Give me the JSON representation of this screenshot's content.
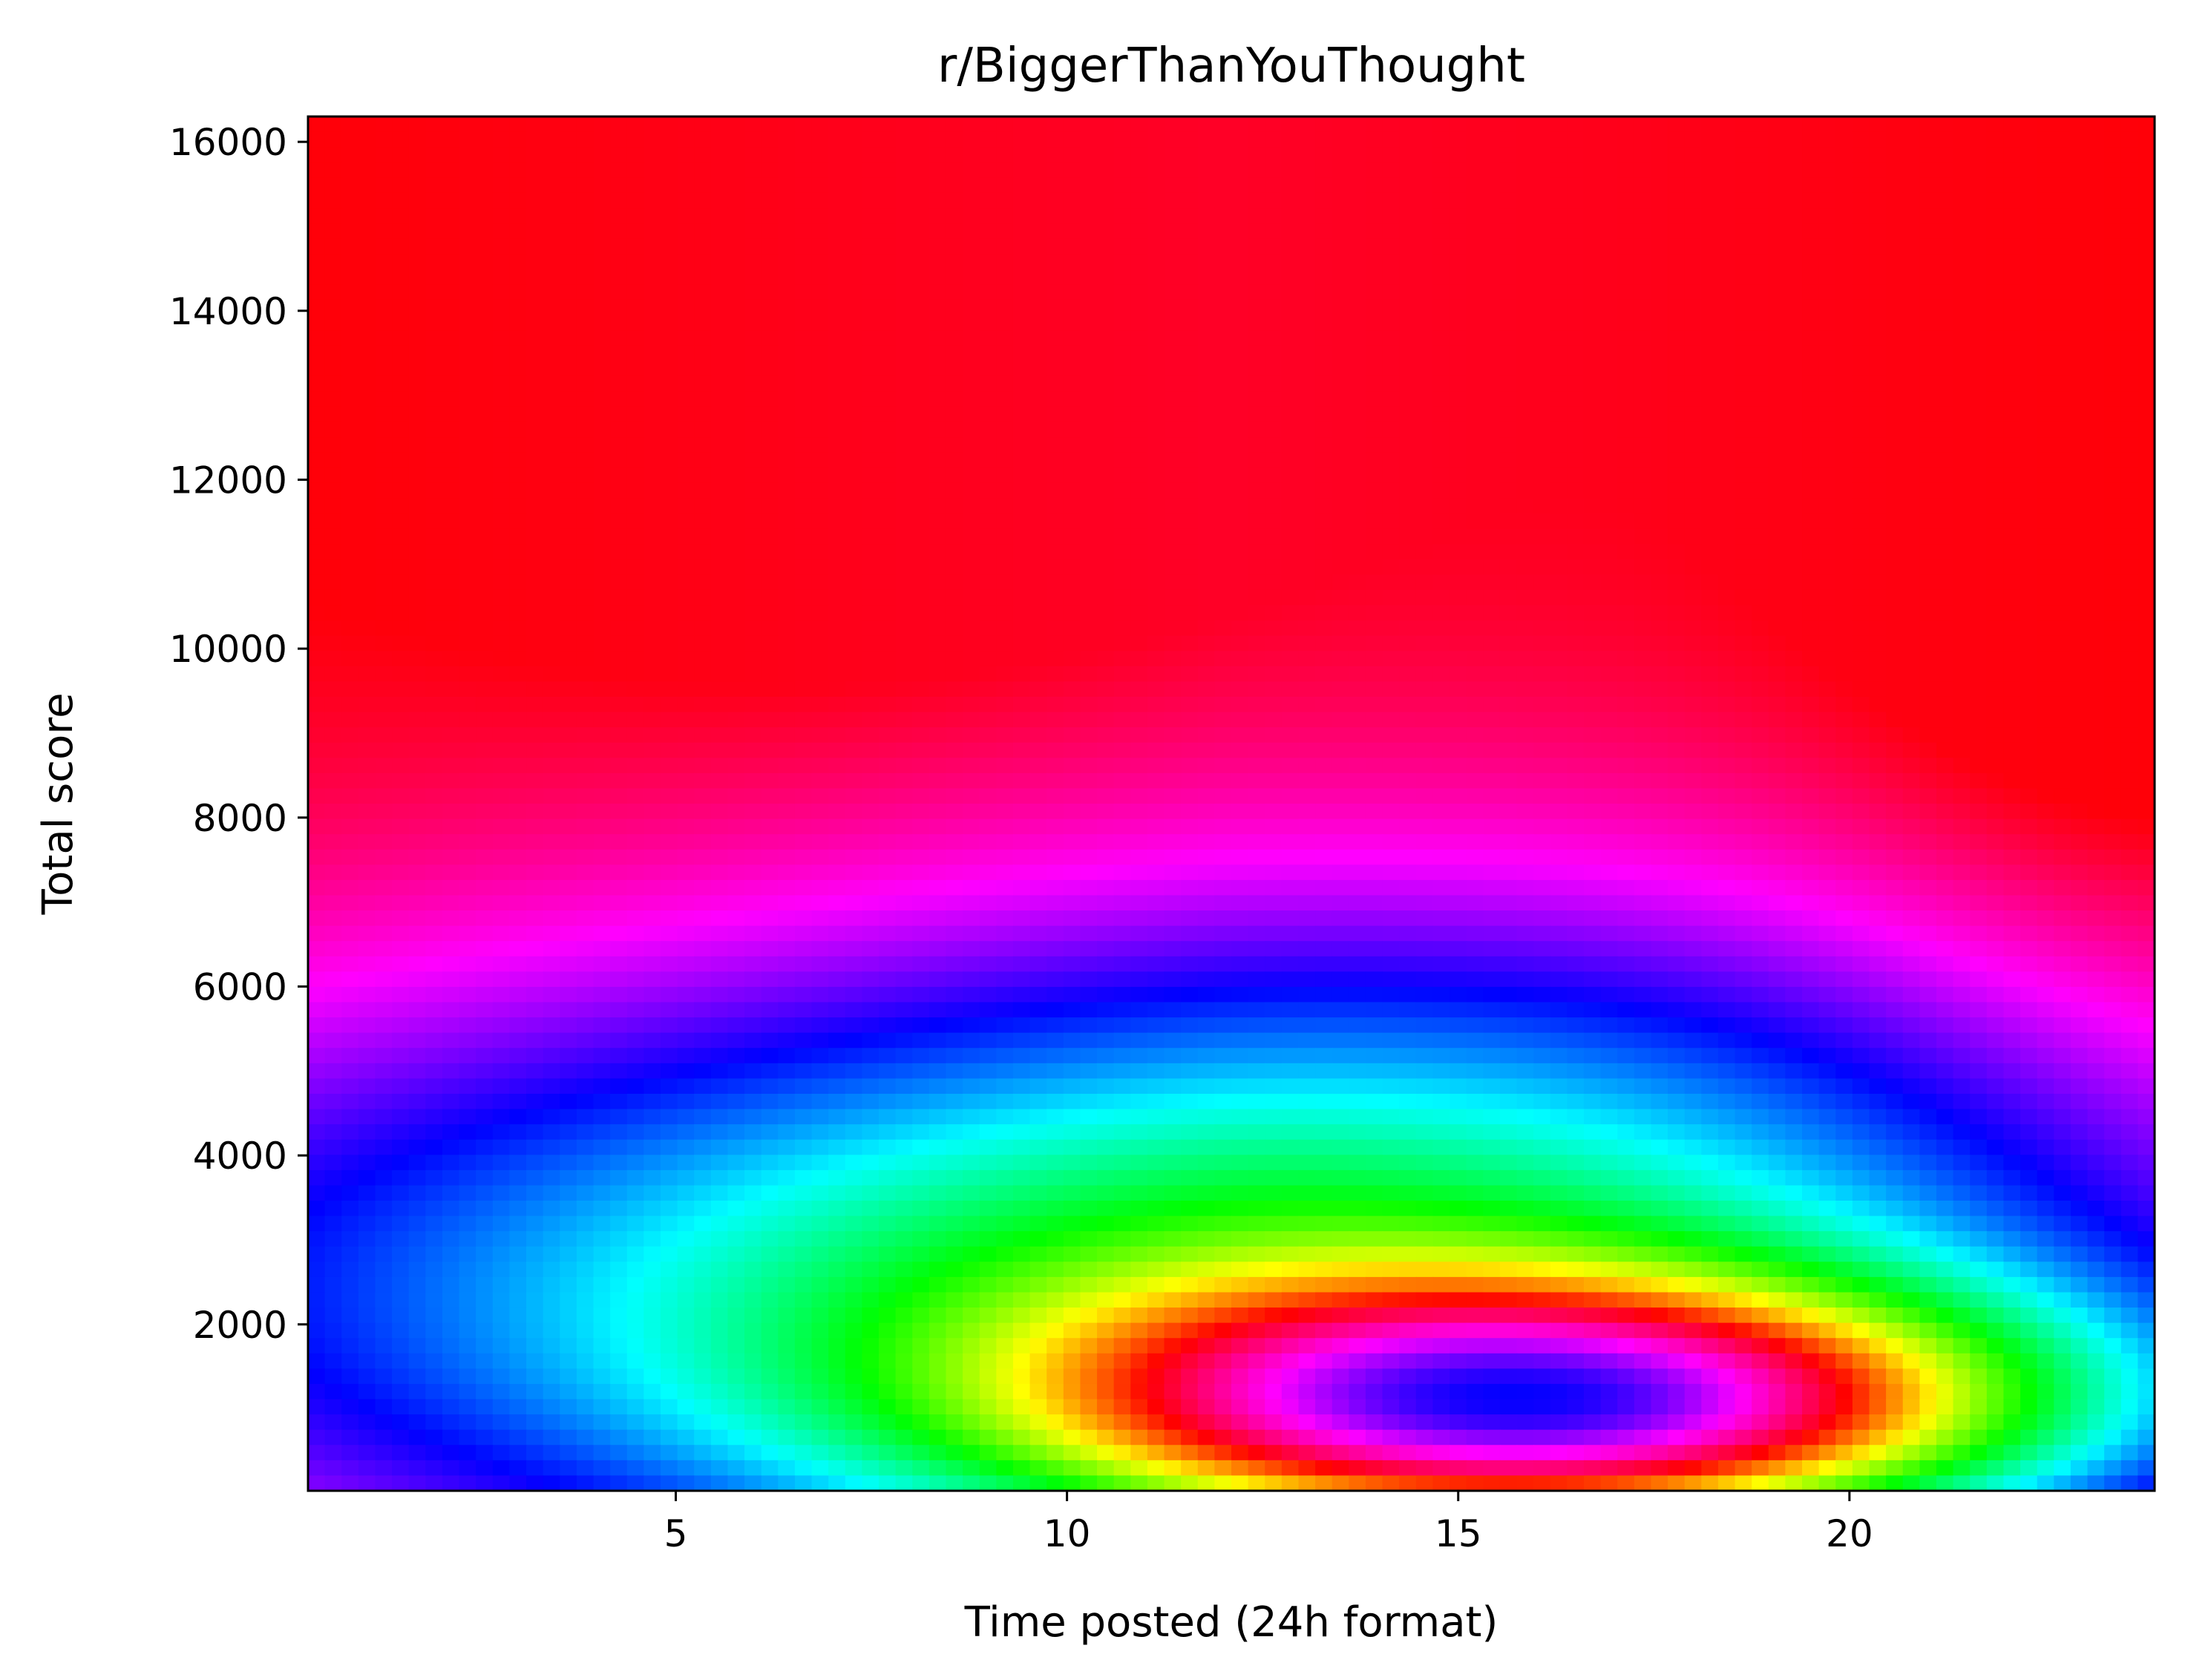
{
  "chart_data": {
    "type": "heatmap",
    "title": "r/BiggerThanYouThought",
    "xlabel": "Time posted (24h format)",
    "ylabel": "Total score",
    "xlim": [
      0.3,
      23.9
    ],
    "ylim": [
      30,
      16300
    ],
    "x_ticks": [
      5,
      10,
      15,
      20
    ],
    "y_ticks": [
      2000,
      4000,
      6000,
      8000,
      10000,
      12000,
      14000,
      16000
    ],
    "colormap": "hsv",
    "grid": false,
    "colorbar": false,
    "density_features": [
      {
        "x": 16.5,
        "y": 1000,
        "level": "max",
        "color": "#ff00e6"
      },
      {
        "x": 14,
        "y": 1500,
        "level": "high",
        "color": "#0000ff"
      },
      {
        "x": 5,
        "y": 900,
        "level": "mid",
        "color": "#0080ff"
      },
      {
        "x": 12,
        "y": 4000,
        "level": "mid",
        "color": "#00ff20"
      },
      {
        "x": 18,
        "y": 6500,
        "level": "low",
        "color": "#ffff00"
      },
      {
        "x": 7,
        "y": 13000,
        "level": "min",
        "color": "#ff0000"
      }
    ]
  }
}
